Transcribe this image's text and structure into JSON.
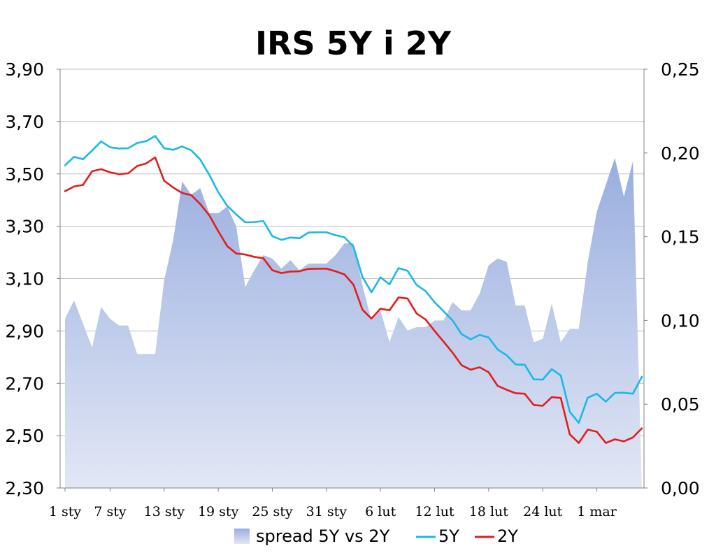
{
  "chart_data": {
    "type": "line",
    "title": "IRS 5Y i 2Y",
    "primary_axis": {
      "ylim": [
        2.3,
        3.9
      ],
      "ticks": [
        "3,90",
        "3,70",
        "3,50",
        "3,30",
        "3,10",
        "2,90",
        "2,70",
        "2,50",
        "2,30"
      ],
      "tick_values": [
        3.9,
        3.7,
        3.5,
        3.3,
        3.1,
        2.9,
        2.7,
        2.5,
        2.3
      ]
    },
    "secondary_axis": {
      "ylim": [
        0.0,
        0.25
      ],
      "ticks": [
        "0,25",
        "0,20",
        "0,15",
        "0,10",
        "0,05",
        "0,00"
      ],
      "tick_values": [
        0.25,
        0.2,
        0.15,
        0.1,
        0.05,
        0.0
      ]
    },
    "x_tick_labels": [
      "1 sty",
      "7 sty",
      "13 sty",
      "19 sty",
      "25 sty",
      "31 sty",
      "6 lut",
      "12 lut",
      "18 lut",
      "24 lut",
      "1 mar"
    ],
    "x_tick_index": [
      0,
      5,
      11,
      17,
      23,
      29,
      35,
      41,
      47,
      53,
      59
    ],
    "grid": true,
    "legend_position": "bottom",
    "series": [
      {
        "name": "spread 5Y vs 2Y",
        "kind": "area",
        "axis": "secondary",
        "color_top": "#99aedf",
        "color_bottom": "#e2e7f5",
        "values": [
          0.101,
          0.112,
          0.098,
          0.084,
          0.108,
          0.101,
          0.097,
          0.097,
          0.08,
          0.08,
          0.08,
          0.124,
          0.148,
          0.183,
          0.175,
          0.179,
          0.164,
          0.164,
          0.168,
          0.156,
          0.12,
          0.13,
          0.139,
          0.137,
          0.131,
          0.136,
          0.13,
          0.134,
          0.134,
          0.134,
          0.139,
          0.146,
          0.146,
          0.121,
          0.1,
          0.106,
          0.087,
          0.102,
          0.094,
          0.096,
          0.096,
          0.1,
          0.1,
          0.111,
          0.106,
          0.106,
          0.116,
          0.133,
          0.137,
          0.135,
          0.109,
          0.109,
          0.087,
          0.089,
          0.11,
          0.087,
          0.095,
          0.095,
          0.135,
          0.165,
          0.181,
          0.197,
          0.174,
          0.195,
          0.0
        ]
      },
      {
        "name": "5Y",
        "kind": "line",
        "axis": "primary",
        "color": "#19b9e6",
        "values": [
          3.533,
          3.565,
          3.556,
          3.589,
          3.624,
          3.602,
          3.597,
          3.598,
          3.618,
          3.625,
          3.645,
          3.598,
          3.592,
          3.605,
          3.59,
          3.555,
          3.497,
          3.43,
          3.378,
          3.345,
          3.315,
          3.316,
          3.32,
          3.262,
          3.248,
          3.257,
          3.254,
          3.276,
          3.277,
          3.277,
          3.266,
          3.258,
          3.222,
          3.106,
          3.048,
          3.105,
          3.078,
          3.14,
          3.13,
          3.076,
          3.052,
          3.01,
          2.975,
          2.94,
          2.888,
          2.868,
          2.885,
          2.875,
          2.829,
          2.807,
          2.772,
          2.771,
          2.715,
          2.714,
          2.754,
          2.73,
          2.591,
          2.549,
          2.645,
          2.66,
          2.63,
          2.663,
          2.664,
          2.66,
          2.725
        ]
      },
      {
        "name": "2Y",
        "kind": "line",
        "axis": "primary",
        "color": "#e21d1d",
        "values": [
          3.434,
          3.452,
          3.458,
          3.51,
          3.518,
          3.506,
          3.499,
          3.502,
          3.53,
          3.54,
          3.563,
          3.474,
          3.448,
          3.427,
          3.419,
          3.385,
          3.342,
          3.281,
          3.224,
          3.196,
          3.192,
          3.183,
          3.178,
          3.132,
          3.121,
          3.127,
          3.128,
          3.137,
          3.138,
          3.138,
          3.128,
          3.116,
          3.077,
          2.981,
          2.947,
          2.985,
          2.979,
          3.028,
          3.024,
          2.967,
          2.944,
          2.9,
          2.859,
          2.817,
          2.769,
          2.752,
          2.761,
          2.742,
          2.69,
          2.675,
          2.662,
          2.66,
          2.617,
          2.614,
          2.647,
          2.644,
          2.505,
          2.472,
          2.523,
          2.515,
          2.472,
          2.486,
          2.478,
          2.493,
          2.528
        ]
      }
    ]
  }
}
